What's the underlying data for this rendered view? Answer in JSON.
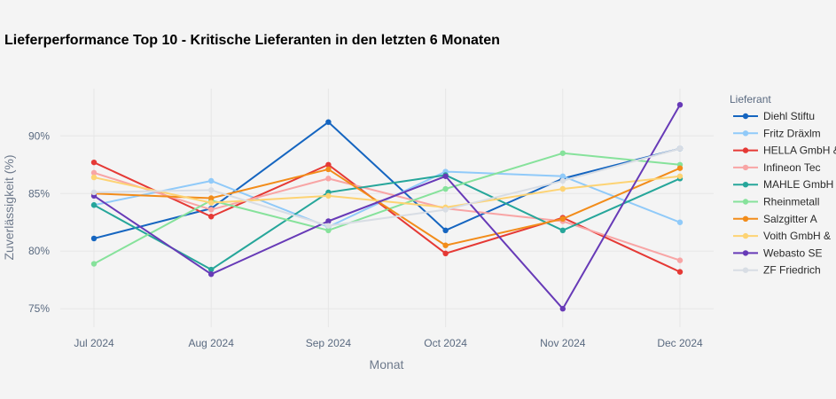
{
  "chart_data": {
    "type": "line",
    "title": "Lieferperformance Top 10 - Kritische Lieferanten in den letzten 6 Monaten",
    "xlabel": "Monat",
    "ylabel": "Zuverlässigkeit (%)",
    "x": [
      "Jul 2024",
      "Aug 2024",
      "Sep 2024",
      "Oct 2024",
      "Nov 2024",
      "Dec 2024"
    ],
    "ylim": [
      73.4,
      94.1
    ],
    "yticks": [
      75,
      80,
      85,
      90
    ],
    "ytick_labels": [
      "75%",
      "80%",
      "85%",
      "90%"
    ],
    "grid": true,
    "legend": {
      "title": "Lieferant",
      "placement": "right"
    },
    "series": [
      {
        "name": "Diehl Stiftu",
        "color": "#1565c0",
        "values": [
          81.1,
          83.7,
          91.2,
          81.8,
          86.3,
          88.9
        ]
      },
      {
        "name": "Fritz Dräxlm",
        "color": "#90caf9",
        "values": [
          84.0,
          86.1,
          82.1,
          86.9,
          86.5,
          82.5
        ]
      },
      {
        "name": "HELLA GmbH &",
        "color": "#e53935",
        "values": [
          87.7,
          83.0,
          87.5,
          79.8,
          82.9,
          78.2
        ]
      },
      {
        "name": "Infineon Tec",
        "color": "#f8a5a5",
        "values": [
          86.8,
          83.6,
          86.3,
          83.7,
          82.6,
          79.2
        ]
      },
      {
        "name": "MAHLE GmbH",
        "color": "#26a69a",
        "values": [
          84.0,
          78.4,
          85.1,
          86.6,
          81.8,
          86.3
        ]
      },
      {
        "name": "Rheinmetall",
        "color": "#86e29b",
        "values": [
          78.9,
          84.4,
          81.8,
          85.4,
          88.5,
          87.5
        ]
      },
      {
        "name": "Salzgitter A",
        "color": "#f28c1a",
        "values": [
          85.0,
          84.6,
          87.1,
          80.5,
          82.8,
          87.2
        ]
      },
      {
        "name": "Voith GmbH &",
        "color": "#fdd373",
        "values": [
          86.4,
          84.2,
          84.8,
          83.8,
          85.4,
          86.5
        ]
      },
      {
        "name": "Webasto SE",
        "color": "#673ab7",
        "values": [
          84.8,
          78.0,
          82.6,
          86.5,
          75.0,
          92.7
        ]
      },
      {
        "name": "ZF Friedrich",
        "color": "#d8dde4",
        "values": [
          85.1,
          85.3,
          82.2,
          83.6,
          86.1,
          88.9
        ]
      }
    ]
  }
}
